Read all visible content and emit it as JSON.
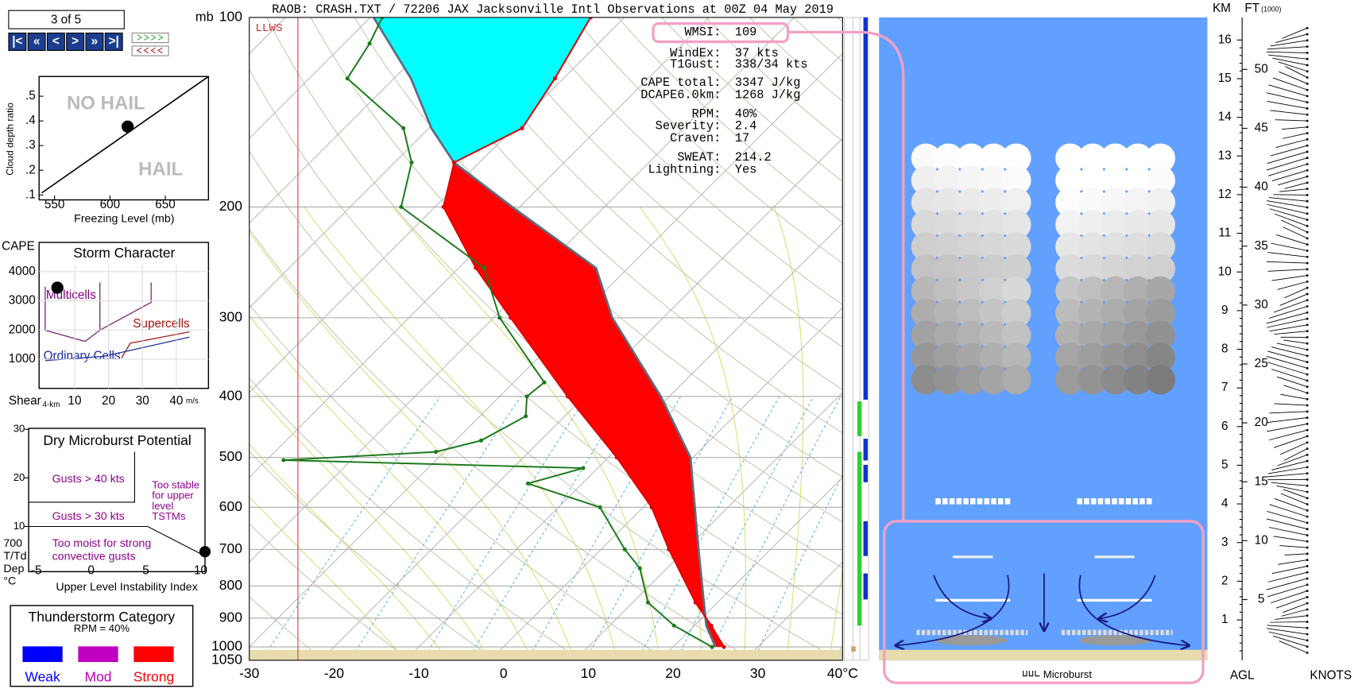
{
  "toolbar": {
    "counter": "3 of 5",
    "buttons": [
      "|<",
      "«",
      "<",
      ">",
      "»",
      ">|"
    ]
  },
  "hail": {
    "no_hail": "NO HAIL",
    "hail": "HAIL",
    "ylabel": "Cloud depth ratio",
    "xlabel": "Freezing Level (mb)",
    "xlim": [
      536,
      689
    ],
    "ylim": [
      0.08,
      0.58
    ],
    "xticks": [
      550,
      600,
      650
    ],
    "yticks": [
      {
        "value": 0.1,
        "label": ".1"
      },
      {
        "value": 0.2,
        "label": ".2"
      },
      {
        "value": 0.3,
        "label": ".3"
      },
      {
        "value": 0.4,
        "label": ".4"
      },
      {
        "value": 0.5,
        "label": ".5"
      }
    ],
    "point": {
      "x": 616,
      "y": 0.377
    }
  },
  "storm": {
    "title": "Storm Character",
    "ylabel": "CAPE",
    "xlabel": "Shear",
    "xlabel_sub": "4-km",
    "xunit": "m/s",
    "xlim": [
      -0.5,
      49.5
    ],
    "ylim": [
      0,
      5000
    ],
    "xticks": [
      10,
      20,
      30,
      40
    ],
    "yticks": [
      1000,
      2000,
      3000,
      4000
    ],
    "labels": {
      "multicells": "Multicells",
      "supercells": "Supercells",
      "ordinary": "Ordinary Cells"
    },
    "point": {
      "x": 4.9,
      "y": 3450
    }
  },
  "microburst": {
    "title": "Dry Microburst Potential",
    "xlabel": "Upper Level Instability Index",
    "xlim": [
      -5.7,
      10.4
    ],
    "ylim": [
      0.7,
      30.2
    ],
    "xticks": [
      -5,
      0,
      5,
      10
    ],
    "yticks": [
      10,
      20,
      30
    ],
    "side_labels": [
      "700",
      "T/Td",
      "Dep",
      "°C"
    ],
    "gusts40": "Gusts > 40 kts",
    "gusts30": "Gusts > 30 kts",
    "stable": [
      "Too stable",
      "for upper",
      "level",
      "TSTMs"
    ],
    "moist": [
      "Too moist for strong",
      "convective gusts"
    ],
    "point": {
      "x": 10.4,
      "y": 4.8
    }
  },
  "category": {
    "title": "Thunderstorm Category",
    "subtitle": "RPM = 40%",
    "levels": [
      {
        "name": "Weak",
        "color": "#0000ff"
      },
      {
        "name": "Mod",
        "color": "#c000c0"
      },
      {
        "name": "Strong",
        "color": "#ff0000"
      }
    ]
  },
  "skewt": {
    "title": "RAOB:  CRASH.TXT / 72206 JAX Jacksonville Intl Observations at 00Z 04 May 2019",
    "ylabel": "mb",
    "llws": "LLWS",
    "ylim": [
      100,
      1050
    ],
    "xlim": [
      -30,
      40
    ],
    "yticks": [
      100,
      200,
      300,
      400,
      500,
      600,
      700,
      800,
      900,
      1000,
      1050
    ],
    "xticks": [
      -30,
      -20,
      -10,
      0,
      10,
      20,
      30,
      {
        "value": 40,
        "label": "40°C"
      }
    ],
    "temperature": {
      "color": "#e00000",
      "p": [
        1000,
        925,
        850,
        700,
        600,
        500,
        400,
        300,
        250,
        200,
        170,
        150,
        125,
        100
      ],
      "t": [
        26,
        22,
        17.4,
        8,
        1,
        -9,
        -22,
        -38,
        -48,
        -59,
        -63,
        -59,
        -61,
        -64
      ]
    },
    "dewpoint": {
      "color": "#1a7a1a",
      "p": [
        1000,
        925,
        850,
        750,
        700,
        600,
        550,
        520,
        505,
        490,
        470,
        430,
        400,
        380,
        300,
        250,
        200,
        170,
        150,
        125,
        110,
        100
      ],
      "t": [
        24.6,
        17.6,
        11.8,
        6.8,
        2.8,
        -5.1,
        -16.4,
        -11.7,
        -48,
        -31,
        -27,
        -24.6,
        -26.8,
        -26.4,
        -39.3,
        -47,
        -64,
        -68,
        -73,
        -85.5,
        -87,
        -88.6
      ]
    },
    "parcel": {
      "color": "#5a6e80",
      "p": [
        1000,
        925,
        700,
        500,
        400,
        300,
        250,
        200,
        170,
        150,
        125,
        100
      ],
      "t": [
        25,
        21.4,
        11.5,
        -0.3,
        -11,
        -26,
        -33.8,
        -50.9,
        -63,
        -69.7,
        -78,
        -89.6
      ]
    },
    "positive_color": "#ff0000",
    "negative_color": "#00ffff"
  },
  "indices": [
    {
      "label": "WMSI:",
      "value": "109"
    },
    {
      "label": "WindEx:",
      "value": "37 kts"
    },
    {
      "label": "T1Gust:",
      "value": "338/34 kts"
    },
    {
      "label": "CAPE total:",
      "value": "3347 J/kg"
    },
    {
      "label": "DCAPE6.0km:",
      "value": "1268 J/kg"
    },
    {
      "label": "RPM:",
      "value": "40%"
    },
    {
      "label": "Severity:",
      "value": "2.4"
    },
    {
      "label": "Craven:",
      "value": "17"
    },
    {
      "label": "SWEAT:",
      "value": "214.2"
    },
    {
      "label": "Lightning:",
      "value": "Yes"
    }
  ],
  "microburst_view": {
    "caption": "Microburst"
  },
  "height_scale": {
    "km_label": "KM",
    "ft_label": "FT",
    "ft_unit": "(1000)",
    "bottom_left": "AGL",
    "bottom_right": "KNOTS",
    "km_ticks": [
      1,
      2,
      3,
      4,
      5,
      6,
      7,
      8,
      9,
      10,
      11,
      12,
      13,
      14,
      15,
      16
    ],
    "ft_ticks": [
      5,
      10,
      15,
      20,
      25,
      30,
      35,
      40,
      45,
      50
    ]
  }
}
